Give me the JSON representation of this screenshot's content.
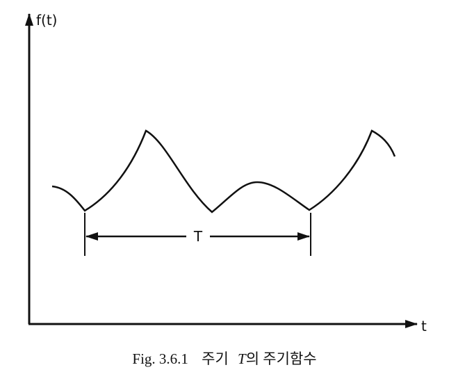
{
  "axes": {
    "y_label": "f(t)",
    "x_label": "t"
  },
  "period_label": "T",
  "caption": {
    "number": "Fig. 3.6.1",
    "text_before": "주기",
    "symbol": "T",
    "text_after": "의 주기함수"
  }
}
